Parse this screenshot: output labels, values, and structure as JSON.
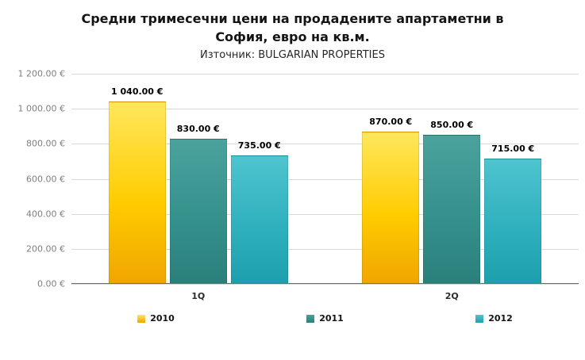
{
  "header": {
    "title_line1": "Средни тримесечни цени на продадените апартаметни в",
    "title_line2": "София, евро на кв.м.",
    "subtitle": "Източник: BULGARIAN PROPERTIES"
  },
  "chart_data": {
    "type": "bar",
    "title": "Средни тримесечни цени на продадените апартаметни в София, евро на кв.м.",
    "subtitle": "Източник: BULGARIAN PROPERTIES",
    "categories": [
      "1Q",
      "2Q"
    ],
    "series": [
      {
        "name": "2010",
        "values": [
          1040,
          870
        ],
        "value_labels": [
          "1 040.00 €",
          "870.00 €"
        ],
        "color": "#FFCC00",
        "gradient_top": "#FFE75C",
        "gradient_bottom": "#F0A500"
      },
      {
        "name": "2011",
        "values": [
          830,
          850
        ],
        "value_labels": [
          "830.00 €",
          "850.00 €"
        ],
        "color": "#35918C",
        "gradient_top": "#4BA29D",
        "gradient_bottom": "#2B7F7B"
      },
      {
        "name": "2012",
        "values": [
          735,
          715
        ],
        "value_labels": [
          "735.00 €",
          "715.00 €"
        ],
        "color": "#2FB0BD",
        "gradient_top": "#4FC4CF",
        "gradient_bottom": "#1E9FAD"
      }
    ],
    "ylim": [
      0,
      1200
    ],
    "ytick_labels": [
      "1 200.00 €",
      "1 000.00 €",
      "800.00 €",
      "600.00 €",
      "400.00 €",
      "200.00 €",
      "0.00 €"
    ],
    "grid": true,
    "legend_position": "bottom",
    "gridline_color": "#D9D9D9",
    "axis_text_color": "#7F7F7F"
  }
}
